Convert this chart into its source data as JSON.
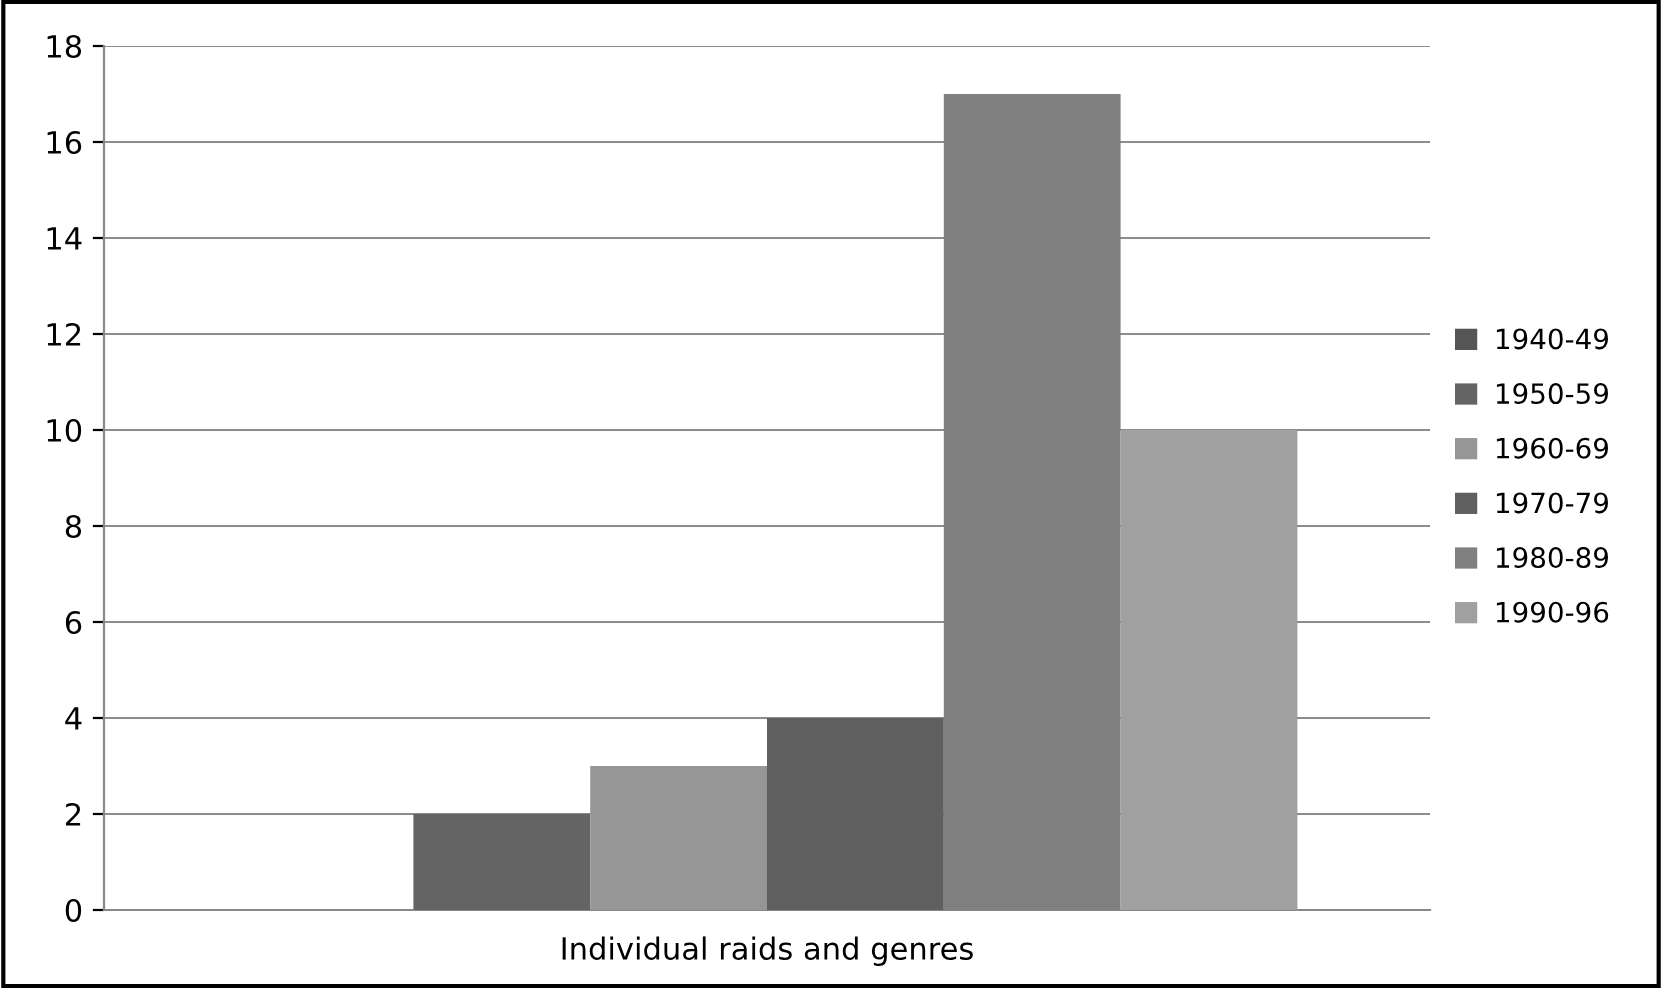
{
  "chart_data": {
    "type": "bar",
    "xlabel": "Individual raids and genres",
    "categories": [
      null
    ],
    "series": [
      {
        "name": "1940-49",
        "color": "#555555",
        "values": [
          0
        ]
      },
      {
        "name": "1950-59",
        "color": "#646464",
        "values": [
          2
        ]
      },
      {
        "name": "1960-69",
        "color": "#969696",
        "values": [
          3
        ]
      },
      {
        "name": "1970-79",
        "color": "#5f5f5f",
        "values": [
          4
        ]
      },
      {
        "name": "1980-89",
        "color": "#808080",
        "values": [
          17
        ]
      },
      {
        "name": "1990-96",
        "color": "#a0a0a0",
        "values": [
          10
        ]
      }
    ],
    "ylim": [
      0,
      18
    ],
    "yticks": [
      0,
      2,
      4,
      6,
      8,
      10,
      12,
      14,
      16,
      18
    ],
    "grid": "y",
    "legend": "right"
  }
}
